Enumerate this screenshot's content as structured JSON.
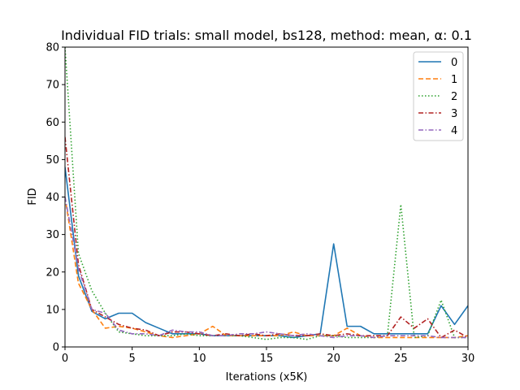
{
  "chart_data": {
    "type": "line",
    "title": "Individual FID trials: small model, bs128, method: mean, α: 0.1",
    "xlabel": "Iterations (x5K)",
    "ylabel": "FID",
    "xlim": [
      0,
      30
    ],
    "ylim": [
      0,
      80
    ],
    "xticks": [
      0,
      5,
      10,
      15,
      20,
      25,
      30
    ],
    "yticks": [
      0,
      10,
      20,
      30,
      40,
      50,
      60,
      70,
      80
    ],
    "grid": false,
    "legend_position": "top-right",
    "x": [
      0,
      1,
      2,
      3,
      4,
      5,
      6,
      7,
      8,
      9,
      10,
      11,
      12,
      13,
      14,
      15,
      16,
      17,
      18,
      19,
      20,
      21,
      22,
      23,
      24,
      25,
      26,
      27,
      28,
      29,
      30
    ],
    "series": [
      {
        "name": "0",
        "color": "#1f77b4",
        "dash": "solid",
        "values": [
          48,
          19,
          9.5,
          7.5,
          9,
          9,
          6.5,
          5,
          3.5,
          3.5,
          3.5,
          3,
          3,
          3,
          3,
          3,
          3,
          2.5,
          3,
          3.5,
          27.5,
          5.5,
          5.5,
          3.5,
          3.5,
          3.5,
          3.5,
          3.5,
          11,
          6,
          11
        ]
      },
      {
        "name": "1",
        "color": "#ff7f0e",
        "dash": "dashed",
        "values": [
          40,
          17,
          10,
          5,
          5.5,
          5,
          4,
          3,
          2.5,
          3,
          3.5,
          5.5,
          3,
          3,
          3,
          3,
          3,
          4,
          3,
          3,
          3,
          5,
          3,
          2.5,
          2.5,
          2.5,
          2.5,
          2.5,
          2.5,
          2.5,
          3
        ]
      },
      {
        "name": "2",
        "color": "#2ca02c",
        "dash": "dotted",
        "values": [
          80,
          25,
          15,
          9,
          4,
          3.5,
          3,
          3,
          3,
          3.5,
          3,
          3,
          3,
          3,
          2.5,
          2,
          2.5,
          2.5,
          2,
          3,
          3,
          2.5,
          2.5,
          2.5,
          3,
          38,
          2.5,
          3,
          12.5,
          2.5,
          2.5
        ]
      },
      {
        "name": "3",
        "color": "#b22222",
        "dash": "dashdot",
        "values": [
          56,
          22,
          10,
          8,
          6,
          5,
          4.5,
          3,
          4,
          4,
          3.5,
          3,
          3.5,
          3,
          3.5,
          3,
          3.5,
          3,
          3,
          3.5,
          3,
          3.5,
          3,
          3,
          3,
          8,
          5,
          7.5,
          2.5,
          4.5,
          2.5
        ]
      },
      {
        "name": "4",
        "color": "#9467bd",
        "dash": "dashdot",
        "values": [
          40,
          21,
          10,
          9,
          4.5,
          3.5,
          3.5,
          3,
          4.5,
          4,
          4,
          3,
          3,
          3.5,
          3.5,
          4,
          3.5,
          3,
          3.5,
          3,
          2.5,
          3,
          3,
          2.5,
          3,
          3,
          3,
          3,
          2.5,
          2.5,
          2.5
        ]
      }
    ]
  }
}
